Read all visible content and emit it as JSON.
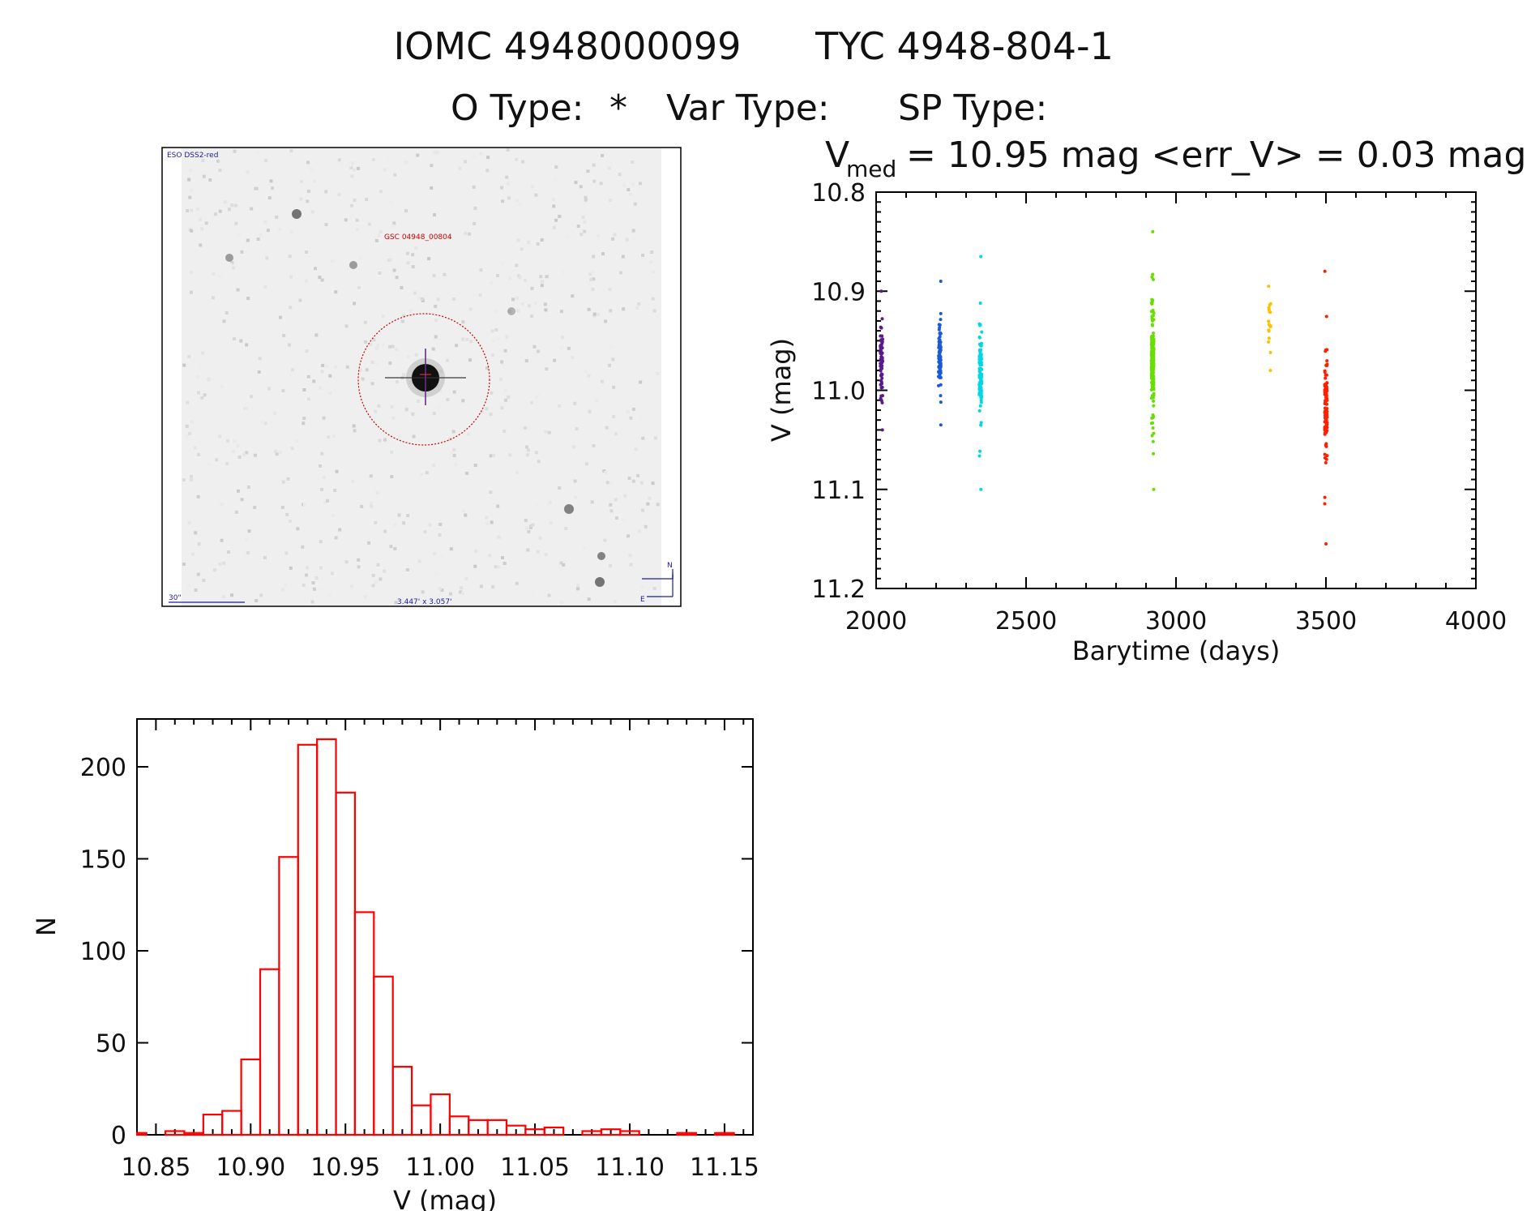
{
  "header": {
    "title_id": "IOMC 4948000099",
    "title_tyc": "TYC 4948-804-1",
    "otype_label": "O Type:",
    "otype_value": "*",
    "vartype_label": "Var Type:",
    "sptype_label": "SP Type:"
  },
  "image_panel": {
    "survey": "ESO DSS2-red",
    "catalog_label": "GSC 04948_00804",
    "scale_label": "30\"",
    "fov_label": "3.447' x 3.057'",
    "north": "N",
    "east": "E"
  },
  "colors": {
    "hist": "#ff0000",
    "overlay": "#cc0000",
    "annot_blue": "#1a1aa0"
  },
  "chart_data": [
    {
      "id": "lightcurve",
      "type": "scatter",
      "title_prefix": "V",
      "title_sub": "med",
      "title_rest": "= 10.95 mag <err_V> = 0.03 mag",
      "xlabel": "Barytime (days)",
      "ylabel": "V (mag)",
      "xlim": [
        2000,
        4000
      ],
      "ylim": [
        10.8,
        11.2
      ],
      "y_inverted": true,
      "xticks": [
        2000,
        2500,
        3000,
        3500,
        4000
      ],
      "yticks": [
        "10.8",
        "10.9",
        "11.0",
        "11.1",
        "11.2"
      ],
      "groups": [
        {
          "x": 2018,
          "ymin": 10.9,
          "ymax": 11.04,
          "color": "#5a1a8a",
          "n": 60
        },
        {
          "x": 2212,
          "ymin": 10.89,
          "ymax": 11.035,
          "color": "#1a5ad8",
          "n": 90
        },
        {
          "x": 2348,
          "ymin": 10.865,
          "ymax": 11.1,
          "color": "#00d8e8",
          "n": 110
        },
        {
          "x": 2922,
          "ymin": 10.84,
          "ymax": 11.1,
          "color": "#66e000",
          "n": 220
        },
        {
          "x": 3312,
          "ymin": 10.895,
          "ymax": 10.98,
          "color": "#ffc000",
          "n": 18
        },
        {
          "x": 3500,
          "ymin": 10.88,
          "ymax": 11.155,
          "color": "#ff2000",
          "n": 110
        }
      ]
    },
    {
      "id": "histogram",
      "type": "bar",
      "xlabel": "V (mag)",
      "ylabel": "N",
      "xlim": [
        10.84,
        11.165
      ],
      "ylim": [
        0,
        226
      ],
      "bin_width": 0.01,
      "bin_start": 10.835,
      "values": [
        1,
        0,
        2,
        1,
        11,
        13,
        41,
        90,
        151,
        212,
        215,
        186,
        121,
        86,
        37,
        16,
        22,
        10,
        8,
        8,
        5,
        3,
        4,
        0,
        2,
        3,
        2,
        0,
        0,
        1,
        0,
        1
      ],
      "xticks": [
        "10.85",
        "10.90",
        "10.95",
        "11.00",
        "11.05",
        "11.10",
        "11.15"
      ],
      "yticks": [
        "0",
        "50",
        "100",
        "150",
        "200"
      ]
    }
  ]
}
